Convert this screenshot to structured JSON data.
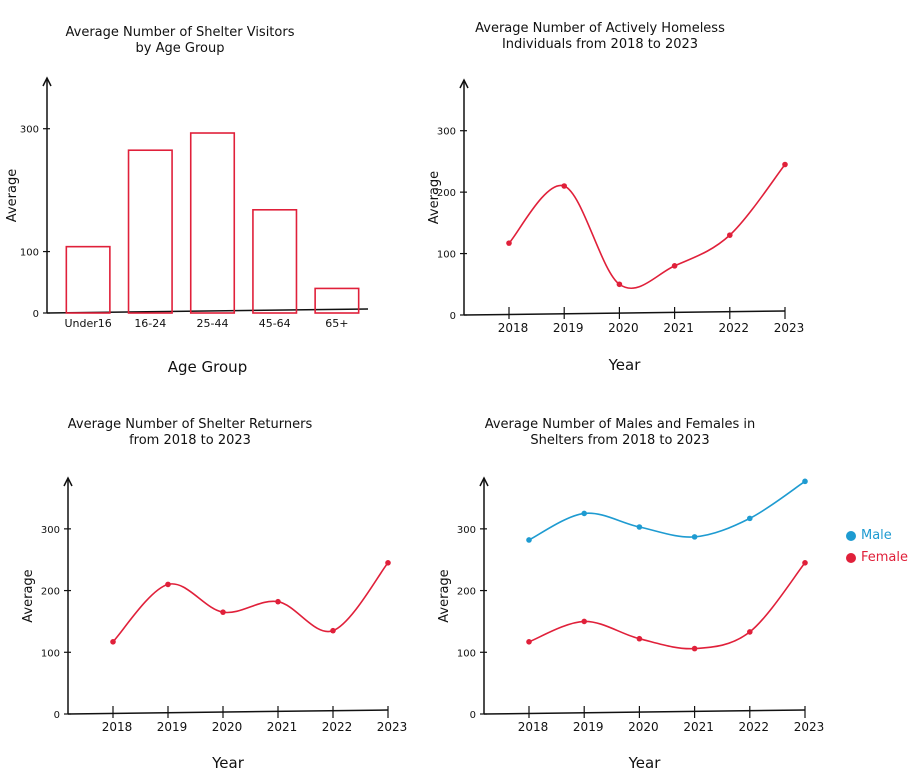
{
  "chart_data": [
    {
      "type": "bar",
      "title": "Average Number of Shelter Visitors\nby Age Group",
      "xlabel": "Age Group",
      "ylabel": "Average",
      "categories": [
        "Under16",
        "16-24",
        "25-44",
        "45-64",
        "65+"
      ],
      "values": [
        108,
        265,
        293,
        168,
        40
      ],
      "ylim": [
        0,
        350
      ],
      "yticks": [
        0,
        100,
        300
      ],
      "color": "#e0203a"
    },
    {
      "type": "line",
      "title": "Average Number of Actively Homeless\nIndividuals from 2018 to 2023",
      "xlabel": "Year",
      "ylabel": "Average",
      "x": [
        "2018",
        "2019",
        "2020",
        "2021",
        "2022",
        "2023"
      ],
      "series": [
        {
          "values": [
            117,
            210,
            50,
            80,
            130,
            245
          ],
          "color": "#e0203a"
        }
      ],
      "ylim": [
        0,
        350
      ],
      "yticks": [
        0,
        100,
        200,
        300
      ]
    },
    {
      "type": "line",
      "title": "Average Number of Shelter Returners\nfrom 2018 to 2023",
      "xlabel": "Year",
      "ylabel": "Average",
      "x": [
        "2018",
        "2019",
        "2020",
        "2021",
        "2022",
        "2023"
      ],
      "series": [
        {
          "values": [
            117,
            210,
            165,
            182,
            135,
            245
          ],
          "color": "#e0203a"
        }
      ],
      "ylim": [
        0,
        350
      ],
      "yticks": [
        0,
        100,
        200,
        300
      ]
    },
    {
      "type": "line",
      "title": "Average Number of Males and Females in\nShelters from 2018 to 2023",
      "xlabel": "Year",
      "ylabel": "Average",
      "x": [
        "2018",
        "2019",
        "2020",
        "2021",
        "2022",
        "2023"
      ],
      "series": [
        {
          "name": "Male",
          "values": [
            282,
            325,
            303,
            287,
            317,
            377
          ],
          "color": "#1e9bd1"
        },
        {
          "name": "Female",
          "values": [
            117,
            150,
            122,
            106,
            133,
            245
          ],
          "color": "#e0203a"
        }
      ],
      "ylim": [
        0,
        350
      ],
      "yticks": [
        0,
        100,
        200,
        300
      ],
      "legend": "right"
    }
  ]
}
